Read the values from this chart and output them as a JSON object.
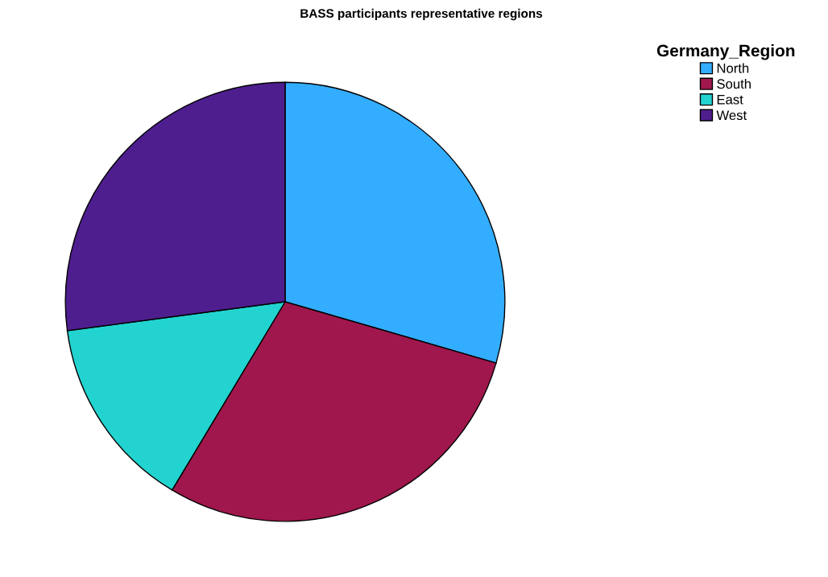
{
  "chart_data": {
    "type": "pie",
    "title": "BASS participants representative regions",
    "legend_title": "Germany_Region",
    "legend": "top right",
    "categories": [
      "North",
      "South",
      "East",
      "West"
    ],
    "values": [
      29.5,
      29.1,
      14.3,
      27.1
    ],
    "colors": [
      "#33adff",
      "#a0174d",
      "#22d3d0",
      "#4e1e8e"
    ]
  }
}
